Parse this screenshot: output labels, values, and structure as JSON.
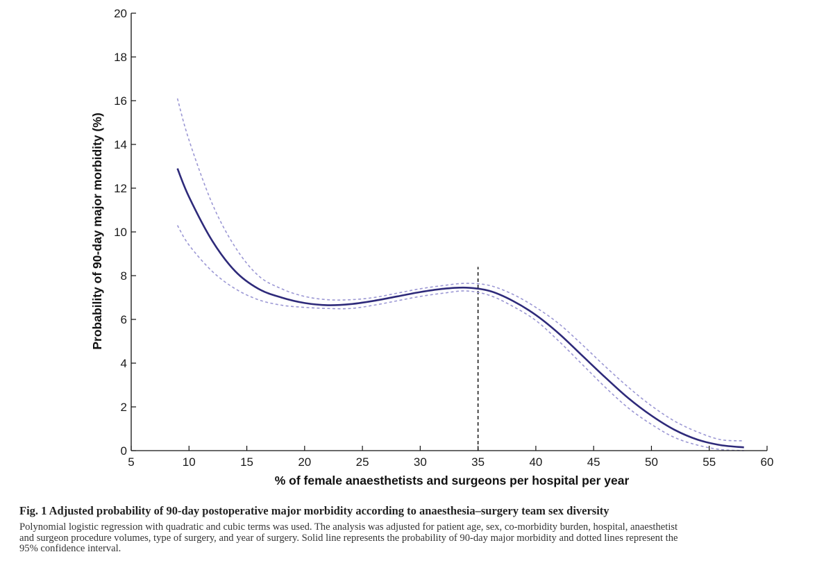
{
  "chart_data": {
    "type": "line",
    "title": "",
    "xlabel": "% of female anaesthetists and surgeons per hospital per year",
    "ylabel": "Probability of 90-day major morbidity (%)",
    "xlim": [
      5,
      60
    ],
    "ylim": [
      0,
      20
    ],
    "xticks": [
      5,
      10,
      15,
      20,
      25,
      30,
      35,
      40,
      45,
      50,
      55,
      60
    ],
    "yticks": [
      0,
      2,
      4,
      6,
      8,
      10,
      12,
      14,
      16,
      18,
      20
    ],
    "x": [
      9,
      10,
      12,
      14,
      16,
      18,
      20,
      22,
      24,
      26,
      28,
      30,
      32,
      34,
      36,
      38,
      40,
      42,
      44,
      46,
      48,
      50,
      52,
      54,
      56,
      58
    ],
    "series": [
      {
        "name": "Probability of 90-day major morbidity",
        "style": "solid",
        "color": "#2e2a7a",
        "values": [
          12.9,
          11.6,
          9.6,
          8.2,
          7.4,
          7.0,
          6.75,
          6.65,
          6.7,
          6.85,
          7.05,
          7.25,
          7.4,
          7.45,
          7.3,
          6.85,
          6.2,
          5.35,
          4.35,
          3.35,
          2.4,
          1.6,
          0.95,
          0.5,
          0.25,
          0.15
        ]
      },
      {
        "name": "95% confidence interval (upper)",
        "style": "dotted",
        "color": "#9b97d4",
        "values": [
          16.1,
          14.2,
          11.3,
          9.3,
          8.0,
          7.4,
          7.05,
          6.9,
          6.9,
          7.0,
          7.2,
          7.4,
          7.55,
          7.65,
          7.55,
          7.15,
          6.55,
          5.8,
          4.85,
          3.85,
          2.9,
          2.05,
          1.35,
          0.85,
          0.5,
          0.45
        ]
      },
      {
        "name": "95% confidence interval (lower)",
        "style": "dotted",
        "color": "#9b97d4",
        "values": [
          10.3,
          9.4,
          8.2,
          7.4,
          6.9,
          6.65,
          6.55,
          6.5,
          6.5,
          6.65,
          6.85,
          7.05,
          7.2,
          7.3,
          7.1,
          6.6,
          5.95,
          5.0,
          3.95,
          2.9,
          1.95,
          1.2,
          0.6,
          0.25,
          0.05,
          0.0
        ]
      }
    ],
    "vertical_line": {
      "x": 35,
      "y_top": 8.4,
      "style": "dashed",
      "color": "#111111"
    },
    "grid": false,
    "legend": "none"
  },
  "caption": {
    "title": "Fig. 1 Adjusted probability of 90-day postoperative major morbidity according to anaesthesia–surgery team sex diversity",
    "lines": [
      "Polynomial logistic regression with quadratic and cubic terms was used. The analysis was adjusted for patient age, sex, co-morbidity burden, hospital, anaesthetist",
      "and surgeon procedure volumes, type of surgery, and year of surgery. Solid line represents the probability of 90-day major morbidity and dotted lines represent the",
      "95% confidence interval."
    ]
  }
}
